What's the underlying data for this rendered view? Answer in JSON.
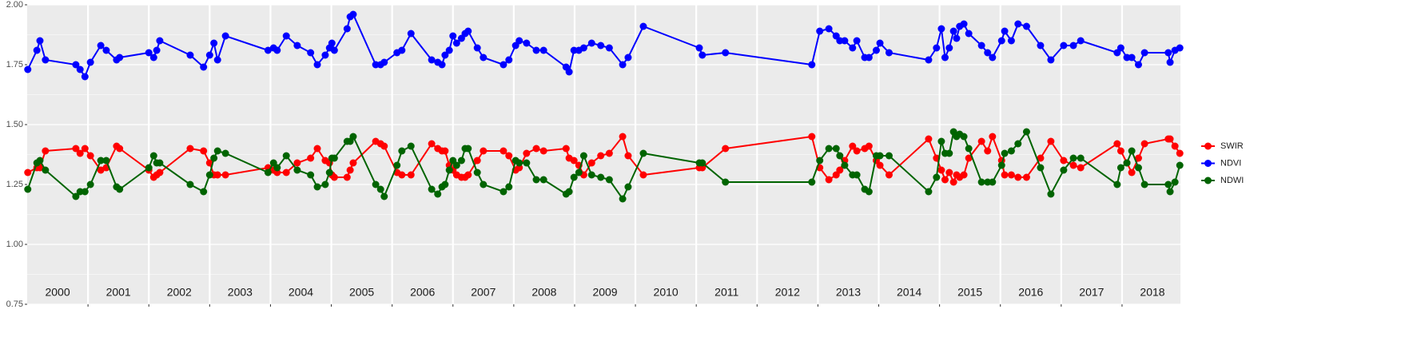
{
  "chart_data": {
    "type": "line",
    "x": [
      2000.01,
      2000.16,
      2000.21,
      2000.3,
      2000.8,
      2000.87,
      2000.95,
      2001.04,
      2001.21,
      2001.3,
      2001.47,
      2001.52,
      2002.0,
      2002.08,
      2002.13,
      2002.18,
      2002.68,
      2002.9,
      2003.0,
      2003.07,
      2003.13,
      2003.26,
      2003.96,
      2004.05,
      2004.11,
      2004.26,
      2004.44,
      2004.66,
      2004.77,
      2004.9,
      2004.97,
      2005.01,
      2005.05,
      2005.26,
      2005.31,
      2005.36,
      2005.73,
      2005.81,
      2005.87,
      2006.08,
      2006.16,
      2006.31,
      2006.65,
      2006.75,
      2006.82,
      2006.87,
      2006.94,
      2007.0,
      2007.06,
      2007.14,
      2007.2,
      2007.25,
      2007.4,
      2007.5,
      2007.83,
      2007.92,
      2008.03,
      2008.09,
      2008.21,
      2008.37,
      2008.49,
      2008.86,
      2008.91,
      2008.99,
      2009.07,
      2009.15,
      2009.28,
      2009.43,
      2009.57,
      2009.79,
      2009.88,
      2010.13,
      2011.05,
      2011.1,
      2011.48,
      2012.9,
      2013.03,
      2013.18,
      2013.3,
      2013.36,
      2013.44,
      2013.57,
      2013.64,
      2013.77,
      2013.84,
      2013.96,
      2014.02,
      2014.17,
      2014.82,
      2014.95,
      2015.03,
      2015.09,
      2015.16,
      2015.23,
      2015.28,
      2015.33,
      2015.4,
      2015.48,
      2015.69,
      2015.79,
      2015.87,
      2016.02,
      2016.07,
      2016.18,
      2016.29,
      2016.43,
      2016.66,
      2016.83,
      2017.04,
      2017.2,
      2017.32,
      2017.92,
      2017.98,
      2018.08,
      2018.16,
      2018.27,
      2018.37,
      2018.76,
      2018.79,
      2018.87,
      2018.95
    ],
    "series": [
      {
        "name": "SWIR",
        "color": "#ff0000",
        "values": [
          1.3,
          1.32,
          1.32,
          1.39,
          1.4,
          1.38,
          1.4,
          1.37,
          1.31,
          1.32,
          1.41,
          1.4,
          1.31,
          1.28,
          1.29,
          1.3,
          1.4,
          1.39,
          1.34,
          1.29,
          1.29,
          1.29,
          1.32,
          1.31,
          1.3,
          1.3,
          1.34,
          1.36,
          1.4,
          1.35,
          1.34,
          1.29,
          1.28,
          1.28,
          1.31,
          1.34,
          1.43,
          1.42,
          1.41,
          1.3,
          1.29,
          1.29,
          1.42,
          1.4,
          1.39,
          1.39,
          1.33,
          1.31,
          1.29,
          1.28,
          1.28,
          1.29,
          1.35,
          1.39,
          1.39,
          1.37,
          1.31,
          1.32,
          1.38,
          1.4,
          1.39,
          1.4,
          1.36,
          1.35,
          1.33,
          1.29,
          1.34,
          1.37,
          1.38,
          1.45,
          1.37,
          1.29,
          1.32,
          1.32,
          1.4,
          1.45,
          1.32,
          1.27,
          1.29,
          1.31,
          1.35,
          1.41,
          1.39,
          1.4,
          1.41,
          1.35,
          1.33,
          1.29,
          1.44,
          1.36,
          1.31,
          1.27,
          1.3,
          1.26,
          1.29,
          1.28,
          1.29,
          1.36,
          1.43,
          1.39,
          1.45,
          1.35,
          1.29,
          1.29,
          1.28,
          1.28,
          1.36,
          1.43,
          1.35,
          1.33,
          1.32,
          1.42,
          1.39,
          1.34,
          1.3,
          1.36,
          1.42,
          1.44,
          1.44,
          1.41,
          1.38
        ]
      },
      {
        "name": "NDVI",
        "color": "#0000ff",
        "values": [
          1.73,
          1.81,
          1.85,
          1.77,
          1.75,
          1.73,
          1.7,
          1.76,
          1.83,
          1.81,
          1.77,
          1.78,
          1.8,
          1.78,
          1.81,
          1.85,
          1.79,
          1.74,
          1.79,
          1.84,
          1.77,
          1.87,
          1.81,
          1.82,
          1.81,
          1.87,
          1.83,
          1.8,
          1.75,
          1.79,
          1.82,
          1.84,
          1.81,
          1.9,
          1.95,
          1.96,
          1.75,
          1.75,
          1.76,
          1.8,
          1.81,
          1.88,
          1.77,
          1.76,
          1.75,
          1.79,
          1.81,
          1.87,
          1.84,
          1.86,
          1.88,
          1.89,
          1.82,
          1.78,
          1.75,
          1.77,
          1.83,
          1.85,
          1.84,
          1.81,
          1.81,
          1.74,
          1.72,
          1.81,
          1.81,
          1.82,
          1.84,
          1.83,
          1.82,
          1.75,
          1.78,
          1.91,
          1.82,
          1.79,
          1.8,
          1.75,
          1.89,
          1.9,
          1.87,
          1.85,
          1.85,
          1.82,
          1.85,
          1.78,
          1.78,
          1.81,
          1.84,
          1.8,
          1.77,
          1.82,
          1.9,
          1.78,
          1.82,
          1.89,
          1.86,
          1.91,
          1.92,
          1.88,
          1.83,
          1.8,
          1.78,
          1.85,
          1.89,
          1.85,
          1.92,
          1.91,
          1.83,
          1.77,
          1.83,
          1.83,
          1.85,
          1.8,
          1.82,
          1.78,
          1.78,
          1.75,
          1.8,
          1.8,
          1.76,
          1.81,
          1.82
        ]
      },
      {
        "name": "NDWI",
        "color": "#006400",
        "values": [
          1.23,
          1.34,
          1.35,
          1.31,
          1.2,
          1.22,
          1.22,
          1.25,
          1.35,
          1.35,
          1.24,
          1.23,
          1.32,
          1.37,
          1.34,
          1.34,
          1.25,
          1.22,
          1.29,
          1.36,
          1.39,
          1.38,
          1.3,
          1.34,
          1.32,
          1.37,
          1.31,
          1.29,
          1.24,
          1.25,
          1.3,
          1.36,
          1.36,
          1.43,
          1.43,
          1.45,
          1.25,
          1.23,
          1.2,
          1.33,
          1.39,
          1.41,
          1.23,
          1.21,
          1.24,
          1.25,
          1.31,
          1.35,
          1.33,
          1.35,
          1.4,
          1.4,
          1.3,
          1.25,
          1.22,
          1.24,
          1.35,
          1.34,
          1.34,
          1.27,
          1.27,
          1.21,
          1.22,
          1.28,
          1.3,
          1.37,
          1.29,
          1.28,
          1.27,
          1.19,
          1.24,
          1.38,
          1.34,
          1.34,
          1.26,
          1.26,
          1.35,
          1.4,
          1.4,
          1.37,
          1.33,
          1.29,
          1.29,
          1.23,
          1.22,
          1.37,
          1.37,
          1.37,
          1.22,
          1.28,
          1.43,
          1.38,
          1.38,
          1.47,
          1.45,
          1.46,
          1.45,
          1.4,
          1.26,
          1.26,
          1.26,
          1.33,
          1.38,
          1.39,
          1.42,
          1.47,
          1.32,
          1.21,
          1.31,
          1.36,
          1.36,
          1.25,
          1.32,
          1.34,
          1.39,
          1.32,
          1.25,
          1.25,
          1.22,
          1.26,
          1.33
        ]
      }
    ],
    "xlim": [
      2000,
      2018.96
    ],
    "xticks": [
      2001,
      2002,
      2003,
      2004,
      2005,
      2006,
      2007,
      2008,
      2009,
      2010,
      2011,
      2012,
      2013,
      2014,
      2015,
      2016,
      2017,
      2018
    ],
    "year_labels": [
      {
        "value": 2000.5,
        "label": "2000"
      },
      {
        "value": 2001.5,
        "label": "2001"
      },
      {
        "value": 2002.5,
        "label": "2002"
      },
      {
        "value": 2003.5,
        "label": "2003"
      },
      {
        "value": 2004.5,
        "label": "2004"
      },
      {
        "value": 2005.5,
        "label": "2005"
      },
      {
        "value": 2006.5,
        "label": "2006"
      },
      {
        "value": 2007.5,
        "label": "2007"
      },
      {
        "value": 2008.5,
        "label": "2008"
      },
      {
        "value": 2009.5,
        "label": "2009"
      },
      {
        "value": 2010.5,
        "label": "2010"
      },
      {
        "value": 2011.5,
        "label": "2011"
      },
      {
        "value": 2012.5,
        "label": "2012"
      },
      {
        "value": 2013.5,
        "label": "2013"
      },
      {
        "value": 2014.5,
        "label": "2014"
      },
      {
        "value": 2015.5,
        "label": "2015"
      },
      {
        "value": 2016.5,
        "label": "2016"
      },
      {
        "value": 2017.5,
        "label": "2017"
      },
      {
        "value": 2018.5,
        "label": "2018"
      }
    ],
    "ylim": [
      0.75,
      2.0
    ],
    "yticks": [
      {
        "value": 0.75,
        "label": "0.75"
      },
      {
        "value": 1,
        "label": "1.00"
      },
      {
        "value": 1.25,
        "label": "1.25"
      },
      {
        "value": 1.5,
        "label": "1.50"
      },
      {
        "value": 1.75,
        "label": "1.75"
      },
      {
        "value": 2,
        "label": "2.00"
      }
    ],
    "yminor_ticks": [
      0.875,
      1.125,
      1.375,
      1.625,
      1.875
    ],
    "grid": true,
    "legend": "right"
  }
}
